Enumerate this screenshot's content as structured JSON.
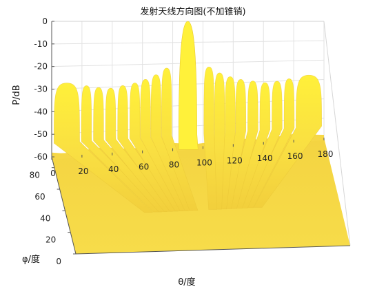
{
  "chart_data": {
    "type": "surface",
    "title": "发射天线方向图(不加锥销)",
    "xlabel": "θ/度",
    "ylabel": "φ/度",
    "zlabel": "P/dB",
    "xlim": [
      0,
      180
    ],
    "ylim": [
      0,
      90
    ],
    "zlim": [
      -60,
      0
    ],
    "x_ticks": [
      0,
      20,
      40,
      60,
      80,
      100,
      120,
      140,
      160,
      180
    ],
    "y_ticks": [
      0,
      20,
      40,
      60,
      80
    ],
    "z_ticks": [
      0,
      -10,
      -20,
      -30,
      -40,
      -50,
      -60
    ],
    "grid": true,
    "colormap": "parula (yellow at top)",
    "main_lobe": {
      "theta": 90,
      "P": 0
    },
    "side_lobe_peaks_phi0": {
      "theta": [
        10,
        23,
        31,
        39,
        47,
        55,
        62,
        69,
        76,
        104,
        111,
        118,
        125,
        133,
        141,
        149,
        157,
        170
      ],
      "P": [
        -27.5,
        -29,
        -30,
        -30.5,
        -29.5,
        -28.5,
        -27,
        -25,
        -22,
        -22,
        -25,
        -27,
        -28.5,
        -29.5,
        -30.5,
        -30,
        -29,
        -27.5
      ]
    },
    "floor_P": -60
  },
  "colors": {
    "face": "#f8e04a",
    "face_dark": "#e9c533",
    "top": "#ffe83a",
    "grid": "#e2e2e2",
    "axis": "#555555"
  }
}
